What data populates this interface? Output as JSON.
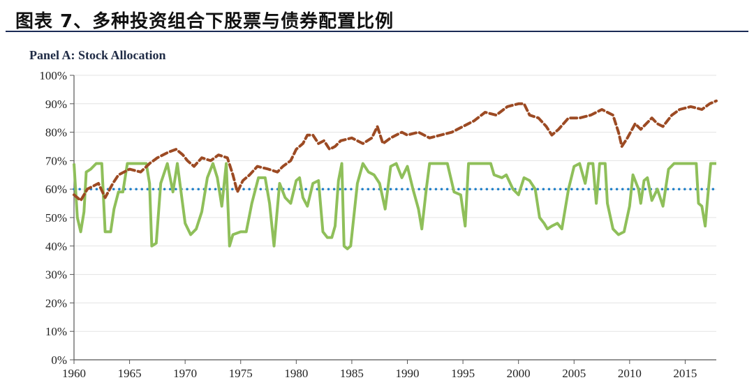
{
  "header": {
    "title": "图表 7、多种投资组合下股票与债券配置比例"
  },
  "chart_data": {
    "type": "line",
    "title": "Panel A: Stock Allocation",
    "xlabel": "",
    "ylabel": "",
    "xlim": [
      1960,
      2017.8
    ],
    "ylim": [
      0,
      100
    ],
    "x_ticks": [
      1960,
      1965,
      1970,
      1975,
      1980,
      1985,
      1990,
      1995,
      2000,
      2005,
      2010,
      2015
    ],
    "x_tick_labels": [
      "1960",
      "1965",
      "1970",
      "1975",
      "1980",
      "1985",
      "1990",
      "1995",
      "2000",
      "2005",
      "2010",
      "2015"
    ],
    "y_ticks": [
      0,
      10,
      20,
      30,
      40,
      50,
      60,
      70,
      80,
      90,
      100
    ],
    "y_tick_labels": [
      "0%",
      "10%",
      "20%",
      "30%",
      "40%",
      "50%",
      "60%",
      "70%",
      "80%",
      "90%",
      "100%"
    ],
    "series": [
      {
        "name": "Brown dashed series",
        "color": "#9c4a23",
        "style": "dashed",
        "points": [
          [
            1960,
            58
          ],
          [
            1960.6,
            56
          ],
          [
            1961.2,
            60
          ],
          [
            1962.2,
            62
          ],
          [
            1962.8,
            57
          ],
          [
            1963.5,
            62
          ],
          [
            1964,
            65
          ],
          [
            1965,
            67
          ],
          [
            1966,
            66
          ],
          [
            1966.8,
            69
          ],
          [
            1967.5,
            71
          ],
          [
            1968.5,
            73
          ],
          [
            1969.2,
            74
          ],
          [
            1969.8,
            72
          ],
          [
            1970.2,
            70
          ],
          [
            1970.8,
            68
          ],
          [
            1971.5,
            71
          ],
          [
            1972.3,
            70
          ],
          [
            1973,
            72
          ],
          [
            1973.8,
            71
          ],
          [
            1974.3,
            65
          ],
          [
            1974.7,
            59
          ],
          [
            1975.2,
            63
          ],
          [
            1975.8,
            65
          ],
          [
            1976.5,
            68
          ],
          [
            1977.5,
            67
          ],
          [
            1978.3,
            66
          ],
          [
            1978.8,
            68
          ],
          [
            1979.5,
            70
          ],
          [
            1980,
            74
          ],
          [
            1980.6,
            76
          ],
          [
            1981,
            79
          ],
          [
            1981.5,
            79
          ],
          [
            1982,
            76
          ],
          [
            1982.5,
            77
          ],
          [
            1983,
            74
          ],
          [
            1983.5,
            75
          ],
          [
            1984,
            77
          ],
          [
            1985,
            78
          ],
          [
            1986,
            76
          ],
          [
            1986.8,
            78
          ],
          [
            1987.3,
            82
          ],
          [
            1987.8,
            76
          ],
          [
            1988.5,
            78
          ],
          [
            1989.5,
            80
          ],
          [
            1990,
            79
          ],
          [
            1991,
            80
          ],
          [
            1992,
            78
          ],
          [
            1993,
            79
          ],
          [
            1994,
            80
          ],
          [
            1995,
            82
          ],
          [
            1996,
            84
          ],
          [
            1997,
            87
          ],
          [
            1998,
            86
          ],
          [
            1999,
            89
          ],
          [
            2000,
            90
          ],
          [
            2000.5,
            90
          ],
          [
            2001,
            86
          ],
          [
            2001.8,
            85
          ],
          [
            2002.5,
            82
          ],
          [
            2003,
            79
          ],
          [
            2003.6,
            81
          ],
          [
            2004.5,
            85
          ],
          [
            2005.5,
            85
          ],
          [
            2006.5,
            86
          ],
          [
            2007.5,
            88
          ],
          [
            2008.5,
            86
          ],
          [
            2009,
            80
          ],
          [
            2009.3,
            75
          ],
          [
            2009.8,
            78
          ],
          [
            2010.5,
            83
          ],
          [
            2011,
            81
          ],
          [
            2011.5,
            83
          ],
          [
            2012,
            85
          ],
          [
            2012.5,
            83
          ],
          [
            2013,
            82
          ],
          [
            2013.8,
            86
          ],
          [
            2014.5,
            88
          ],
          [
            2015.5,
            89
          ],
          [
            2016.5,
            88
          ],
          [
            2017.2,
            90
          ],
          [
            2017.8,
            91
          ]
        ]
      },
      {
        "name": "Green solid series",
        "color": "#8fbf5a",
        "style": "solid",
        "points": [
          [
            1960,
            69
          ],
          [
            1960.3,
            50
          ],
          [
            1960.6,
            45
          ],
          [
            1960.9,
            52
          ],
          [
            1961.1,
            66
          ],
          [
            1961.5,
            67
          ],
          [
            1962,
            69
          ],
          [
            1962.5,
            69
          ],
          [
            1962.8,
            45
          ],
          [
            1963.3,
            45
          ],
          [
            1963.6,
            53
          ],
          [
            1964,
            59
          ],
          [
            1964.4,
            59
          ],
          [
            1964.8,
            69
          ],
          [
            1965.5,
            69
          ],
          [
            1966.5,
            69
          ],
          [
            1966.8,
            62
          ],
          [
            1967,
            40
          ],
          [
            1967.4,
            41
          ],
          [
            1967.8,
            62
          ],
          [
            1968.4,
            69
          ],
          [
            1968.9,
            59
          ],
          [
            1969.3,
            69
          ],
          [
            1969.6,
            60
          ],
          [
            1970,
            48
          ],
          [
            1970.5,
            44
          ],
          [
            1971,
            46
          ],
          [
            1971.5,
            52
          ],
          [
            1972,
            64
          ],
          [
            1972.5,
            69
          ],
          [
            1972.9,
            64
          ],
          [
            1973.3,
            54
          ],
          [
            1973.7,
            69
          ],
          [
            1974,
            40
          ],
          [
            1974.3,
            44
          ],
          [
            1975,
            45
          ],
          [
            1975.5,
            45
          ],
          [
            1976,
            55
          ],
          [
            1976.6,
            64
          ],
          [
            1977.2,
            64
          ],
          [
            1977.6,
            55
          ],
          [
            1978,
            40
          ],
          [
            1978.5,
            62
          ],
          [
            1979,
            57
          ],
          [
            1979.5,
            55
          ],
          [
            1980,
            63
          ],
          [
            1980.3,
            64
          ],
          [
            1980.6,
            57
          ],
          [
            1981,
            54
          ],
          [
            1981.5,
            62
          ],
          [
            1982,
            63
          ],
          [
            1982.4,
            45
          ],
          [
            1982.8,
            43
          ],
          [
            1983.2,
            43
          ],
          [
            1983.5,
            47
          ],
          [
            1983.8,
            63
          ],
          [
            1984.1,
            69
          ],
          [
            1984.3,
            40
          ],
          [
            1984.6,
            39
          ],
          [
            1984.9,
            40
          ],
          [
            1985.5,
            62
          ],
          [
            1986,
            69
          ],
          [
            1986.5,
            66
          ],
          [
            1987,
            65
          ],
          [
            1987.5,
            62
          ],
          [
            1988,
            53
          ],
          [
            1988.5,
            68
          ],
          [
            1989,
            69
          ],
          [
            1989.5,
            64
          ],
          [
            1990,
            68
          ],
          [
            1990.5,
            60
          ],
          [
            1991,
            53
          ],
          [
            1991.3,
            46
          ],
          [
            1991.7,
            60
          ],
          [
            1992,
            69
          ],
          [
            1993,
            69
          ],
          [
            1993.6,
            69
          ],
          [
            1994.2,
            59
          ],
          [
            1994.8,
            58
          ],
          [
            1995.2,
            47
          ],
          [
            1995.5,
            69
          ],
          [
            1996.5,
            69
          ],
          [
            1997.5,
            69
          ],
          [
            1997.8,
            65
          ],
          [
            1998.5,
            64
          ],
          [
            1998.9,
            65
          ],
          [
            1999.5,
            60
          ],
          [
            2000,
            58
          ],
          [
            2000.5,
            64
          ],
          [
            2001,
            63
          ],
          [
            2001.5,
            60
          ],
          [
            2001.9,
            50
          ],
          [
            2002.3,
            48
          ],
          [
            2002.6,
            46
          ],
          [
            2003,
            47
          ],
          [
            2003.5,
            48
          ],
          [
            2003.9,
            46
          ],
          [
            2004.5,
            60
          ],
          [
            2005,
            68
          ],
          [
            2005.5,
            69
          ],
          [
            2006,
            62
          ],
          [
            2006.3,
            69
          ],
          [
            2006.7,
            69
          ],
          [
            2007,
            55
          ],
          [
            2007.3,
            69
          ],
          [
            2007.8,
            69
          ],
          [
            2008,
            55
          ],
          [
            2008.5,
            46
          ],
          [
            2009,
            44
          ],
          [
            2009.5,
            45
          ],
          [
            2010,
            54
          ],
          [
            2010.3,
            65
          ],
          [
            2010.8,
            60
          ],
          [
            2011,
            55
          ],
          [
            2011.3,
            63
          ],
          [
            2011.6,
            64
          ],
          [
            2012,
            56
          ],
          [
            2012.5,
            60
          ],
          [
            2013,
            54
          ],
          [
            2013.5,
            67
          ],
          [
            2014,
            69
          ],
          [
            2015,
            69
          ],
          [
            2016,
            69
          ],
          [
            2016.2,
            55
          ],
          [
            2016.5,
            54
          ],
          [
            2016.8,
            47
          ],
          [
            2017,
            56
          ],
          [
            2017.3,
            69
          ],
          [
            2017.8,
            69
          ]
        ]
      },
      {
        "name": "Blue dotted series",
        "color": "#1f7fc8",
        "style": "dotted",
        "points": [
          [
            1960,
            60
          ],
          [
            2017.8,
            60
          ]
        ]
      }
    ]
  }
}
